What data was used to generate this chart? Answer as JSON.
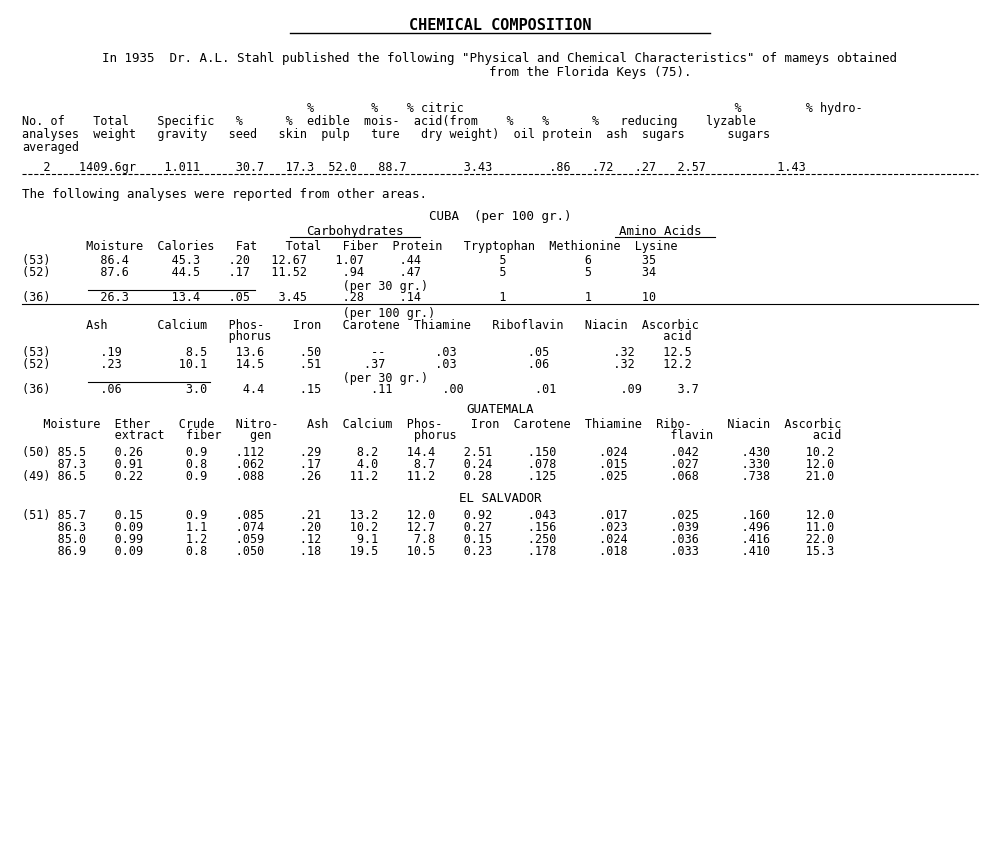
{
  "title": "CHEMICAL COMPOSITION",
  "intro_line1": "In 1935  Dr. A.L. Stahl published the following \"Physical and Chemical Characteristics\" of mameys obtained",
  "intro_line2": "                        from the Florida Keys (75).",
  "fk_header1": "                                        %        %    % citric                                      %         % hydro-",
  "fk_header2": "No. of    Total    Specific   %      %  edible  mois-  acid(from    %    %      %   reducing    lyzable",
  "fk_header3": "analyses  weight   gravity   seed   skin  pulp   ture   dry weight)  oil protein  ash  sugars      sugars",
  "fk_header4": "averaged",
  "fk_data": "   2    1409.6gr    1.011     30.7   17.3  52.0   88.7        3.43        .86   .72   .27   2.57          1.43",
  "text_between": "The following analyses were reported from other areas.",
  "cuba_title": "CUBA  (per 100 gr.)",
  "cuba_carb_hdr": "Carbohydrates",
  "cuba_aa_hdr": "Amino Acids",
  "cuba_col1": "         Moisture  Calories   Fat    Total   Fiber  Protein   Tryptophan  Methionine  Lysine",
  "cuba_r53a": "(53)       86.4      45.3    .20   12.67    1.07     .44           5           6       35",
  "cuba_r52a": "(52)       87.6      44.5    .17   11.52     .94     .47           5           5       34",
  "cuba_per30a": "                                             (per 30 gr.)",
  "cuba_r36a": "(36)       26.3      13.4    .05    3.45     .28     .14           1           1       10",
  "cuba_per100": "                                             (per 100 gr.)",
  "cuba_col2a": "         Ash       Calcium   Phos-    Iron   Carotene  Thiamine   Riboflavin   Niacin  Ascorbic",
  "cuba_col2b": "                             phorus                                                       acid",
  "cuba_r53b": "(53)       .19         8.5    13.6     .50       --       .03          .05         .32    12.5",
  "cuba_r52b": "(52)       .23        10.1    14.5     .51      .37       .03          .06         .32    12.2",
  "cuba_per30b": "                                             (per 30 gr.)",
  "cuba_r36b": "(36)       .06         3.0     4.4     .15       .11       .00          .01         .09     3.7",
  "guat_title": "GUATEMALA",
  "guat_col1": "   Moisture  Ether    Crude   Nitro-    Ash  Calcium  Phos-    Iron  Carotene  Thiamine  Ribo-     Niacin  Ascorbic",
  "guat_col2": "             extract   fiber    gen                    phorus                              flavin              acid",
  "guat_r50": "(50) 85.5    0.26      0.9    .112     .29     8.2    14.4    2.51     .150      .024      .042      .430     10.2",
  "guat_r__": "     87.3    0.91      0.8    .062     .17     4.0     8.7    0.24     .078      .015      .027      .330     12.0",
  "guat_r49": "(49) 86.5    0.22      0.9    .088     .26    11.2    11.2    0.28     .125      .025      .068      .738     21.0",
  "elsal_title": "EL SALVADOR",
  "elsal_r51": "(51) 85.7    0.15      0.9    .085     .21    13.2    12.0    0.92     .043      .017      .025      .160     12.0",
  "elsal_r__1": "     86.3    0.09      1.1    .074     .20    10.2    12.7    0.27     .156      .023      .039      .496     11.0",
  "elsal_r__2": "     85.0    0.99      1.2    .059     .12     9.1     7.8    0.15     .250      .024      .036      .416     22.0",
  "elsal_r__3": "     86.9    0.09      0.8    .050     .18    19.5    10.5    0.23     .178      .018      .033      .410     15.3"
}
